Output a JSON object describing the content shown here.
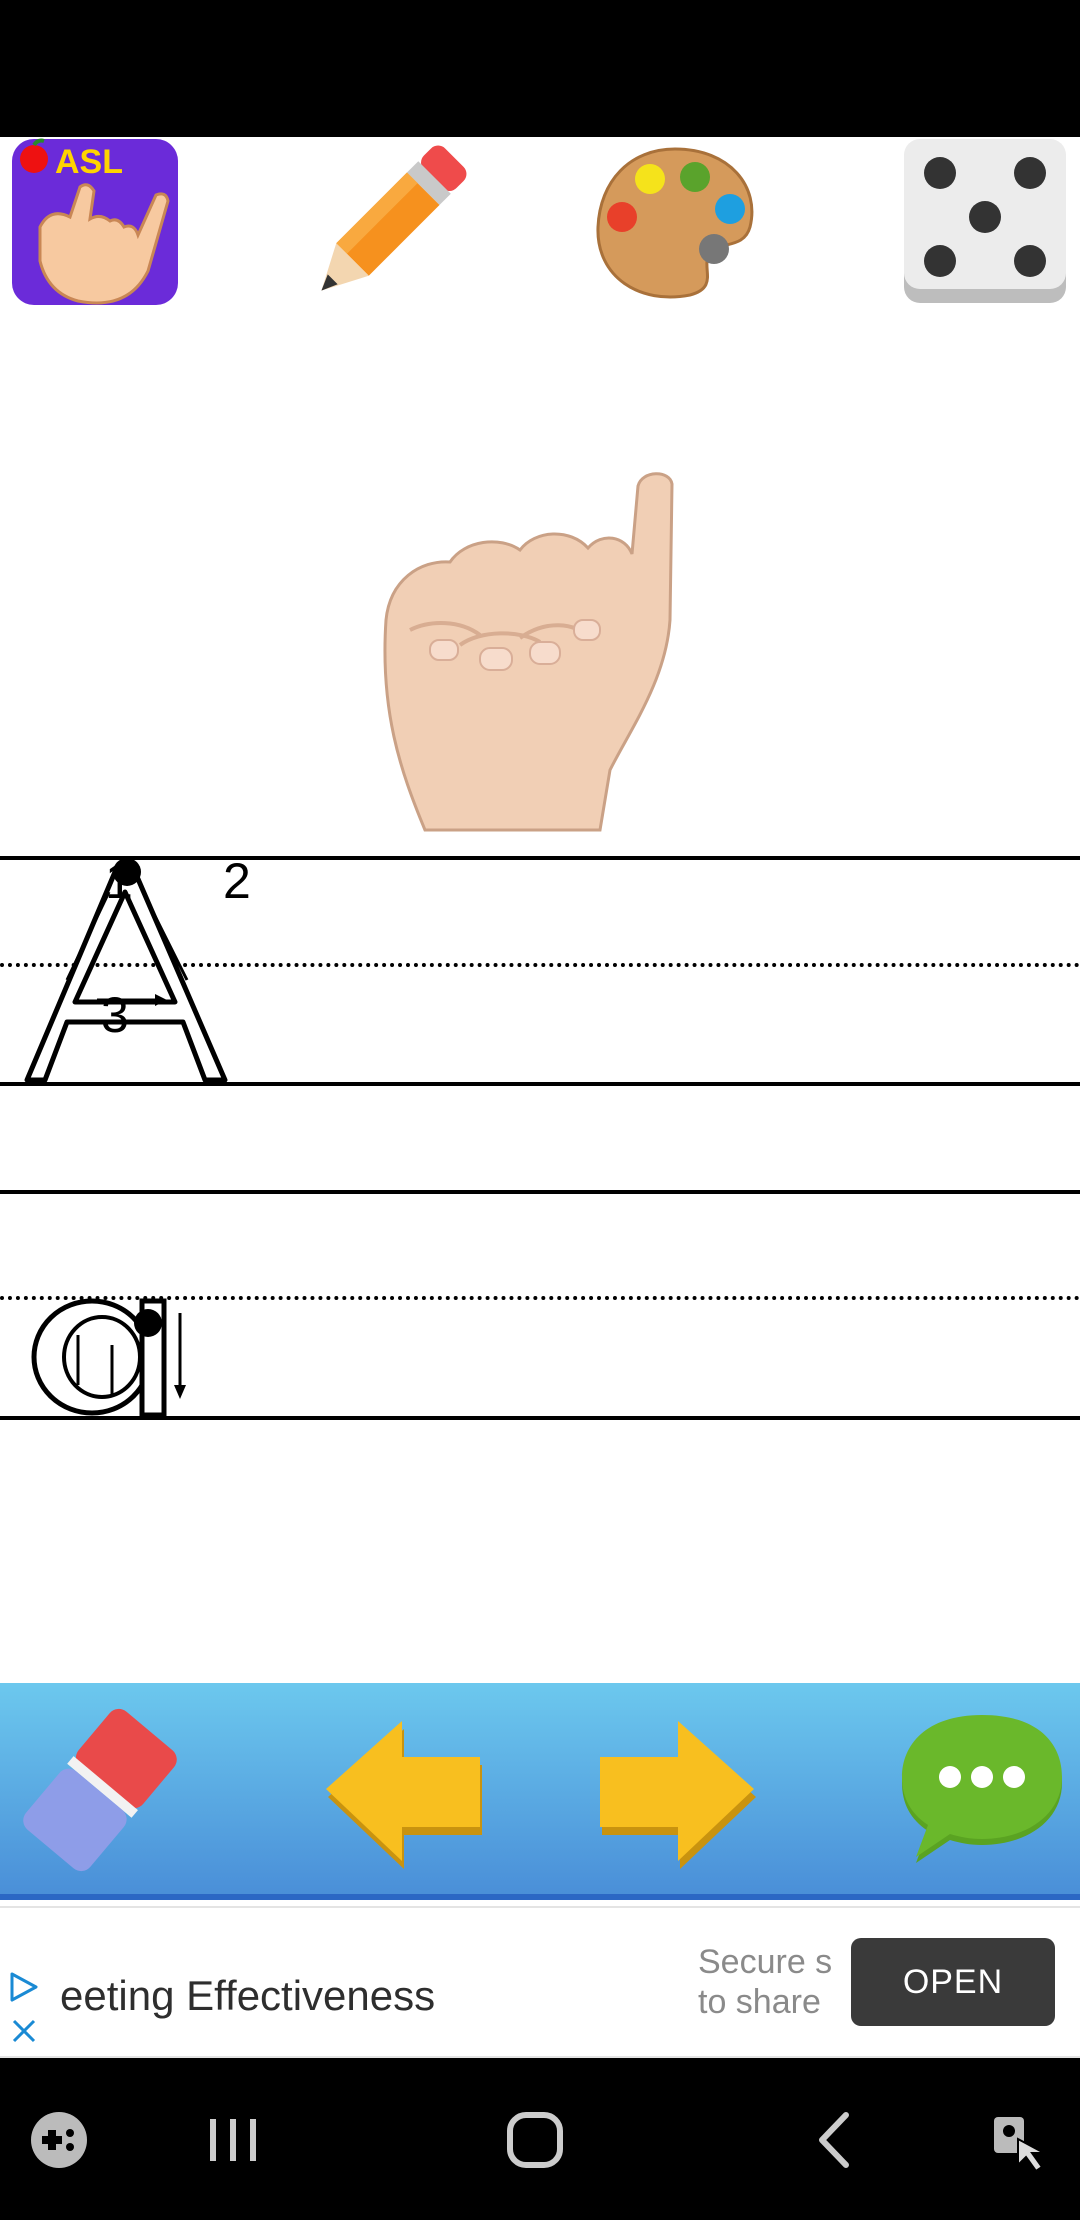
{
  "practice": {
    "uppercase_letter": "A",
    "lowercase_letter": "a",
    "stroke_numbers": [
      "1",
      "2",
      "3"
    ]
  },
  "ad": {
    "headline": "eeting Effectiveness",
    "subtext_line1": "Secure s",
    "subtext_line2": "to share",
    "cta": "OPEN"
  },
  "icons": {
    "top_toolbar": [
      "asl-app-logo",
      "pencil-icon",
      "palette-icon",
      "dice-icon"
    ],
    "bottom_toolbar": [
      "eraser-icon",
      "arrow-left-icon",
      "arrow-right-icon",
      "chat-bubble-icon"
    ],
    "nav_bar": [
      "game-launcher-icon",
      "recent-apps-icon",
      "home-icon",
      "back-icon",
      "accessibility-icon"
    ]
  },
  "logo_text": "ASL",
  "colors": {
    "toolbar_top": "#6cc8ee",
    "toolbar_bottom": "#4a8fd8",
    "arrow": "#f8bf1f",
    "chat": "#6ab82b",
    "eraser_red": "#e94a4a",
    "eraser_blue": "#8e9de8",
    "ad_button": "#3a3a3a"
  }
}
